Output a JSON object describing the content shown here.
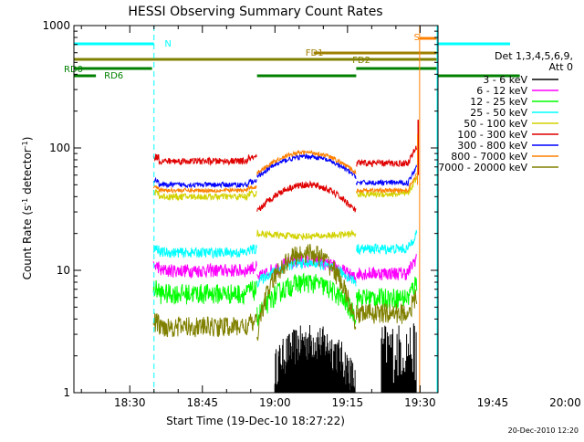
{
  "chart_data": {
    "type": "line",
    "title": "HESSI Observing Summary Count Rates",
    "xlabel": "Start Time (19-Dec-10 18:27:22)",
    "ylabel_pre": "Count Rate (s",
    "ylabel_sup1": "-1",
    "ylabel_mid": " detector",
    "ylabel_sup2": "-1",
    "ylabel_post": ")",
    "yscale": "log",
    "ylim": [
      1,
      1000
    ],
    "xlim_minutes": [
      18.45,
      93.7
    ],
    "x_ticks": [
      {
        "label": "18:30",
        "m": 30
      },
      {
        "label": "18:45",
        "m": 45
      },
      {
        "label": "19:00",
        "m": 60
      },
      {
        "label": "19:15",
        "m": 75
      },
      {
        "label": "19:30",
        "m": 90
      },
      {
        "label": "19:45",
        "m": 105
      },
      {
        "label": "20:00",
        "m": 120
      }
    ],
    "y_ticks": [
      {
        "label": "1",
        "v": 1
      },
      {
        "label": "10",
        "v": 10
      },
      {
        "label": "100",
        "v": 100
      },
      {
        "label": "1000",
        "v": 1000
      }
    ],
    "legend": {
      "header1": "Det 1,3,4,5,6,9,",
      "header2": "Att 0",
      "placement": "right"
    },
    "series": [
      {
        "name": "3 - 6 keV",
        "color": "#000000"
      },
      {
        "name": "6 - 12 keV",
        "color": "#ff00ff"
      },
      {
        "name": "12 - 25 keV",
        "color": "#00ff00"
      },
      {
        "name": "25 - 50 keV",
        "color": "#00ffff"
      },
      {
        "name": "50 - 100 keV",
        "color": "#d2d200"
      },
      {
        "name": "100 - 300 keV",
        "color": "#e00000"
      },
      {
        "name": "300 - 800 keV",
        "color": "#0000ff"
      },
      {
        "name": "800 - 7000 keV",
        "color": "#ff8000"
      },
      {
        "name": "7000 - 20000 keV",
        "color": "#808000"
      }
    ],
    "flags": [
      {
        "label": "N",
        "color": "#00ffff"
      },
      {
        "label": "S",
        "color": "#ff8000"
      },
      {
        "label": "FD1",
        "color": "#a08000"
      },
      {
        "label": "FD2",
        "color": "#808000"
      },
      {
        "label": "RD0",
        "color": "#008000"
      },
      {
        "label": "RD6",
        "color": "#008000"
      }
    ],
    "timestamp": "20-Dec-2010 12:20"
  }
}
